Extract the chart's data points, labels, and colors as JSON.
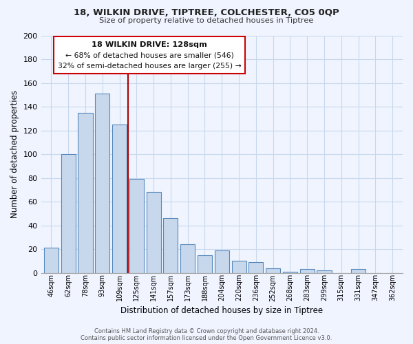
{
  "title": "18, WILKIN DRIVE, TIPTREE, COLCHESTER, CO5 0QP",
  "subtitle": "Size of property relative to detached houses in Tiptree",
  "xlabel": "Distribution of detached houses by size in Tiptree",
  "ylabel": "Number of detached properties",
  "bar_color": "#c8d8ec",
  "bar_edge_color": "#5588bb",
  "categories": [
    "46sqm",
    "62sqm",
    "78sqm",
    "93sqm",
    "109sqm",
    "125sqm",
    "141sqm",
    "157sqm",
    "173sqm",
    "188sqm",
    "204sqm",
    "220sqm",
    "236sqm",
    "252sqm",
    "268sqm",
    "283sqm",
    "299sqm",
    "315sqm",
    "331sqm",
    "347sqm",
    "362sqm"
  ],
  "values": [
    21,
    100,
    135,
    151,
    125,
    79,
    68,
    46,
    24,
    15,
    19,
    10,
    9,
    4,
    1,
    3,
    2,
    0,
    3,
    0,
    0
  ],
  "ylim": [
    0,
    200
  ],
  "yticks": [
    0,
    20,
    40,
    60,
    80,
    100,
    120,
    140,
    160,
    180,
    200
  ],
  "vline_index": 5,
  "vline_color": "#aa0000",
  "annotation_title": "18 WILKIN DRIVE: 128sqm",
  "annotation_line1": "← 68% of detached houses are smaller (546)",
  "annotation_line2": "32% of semi-detached houses are larger (255) →",
  "annotation_box_color": "#ffffff",
  "annotation_box_edge": "#cc0000",
  "footer1": "Contains HM Land Registry data © Crown copyright and database right 2024.",
  "footer2": "Contains public sector information licensed under the Open Government Licence v3.0.",
  "background_color": "#f0f4ff",
  "grid_color": "#c8d8ec"
}
